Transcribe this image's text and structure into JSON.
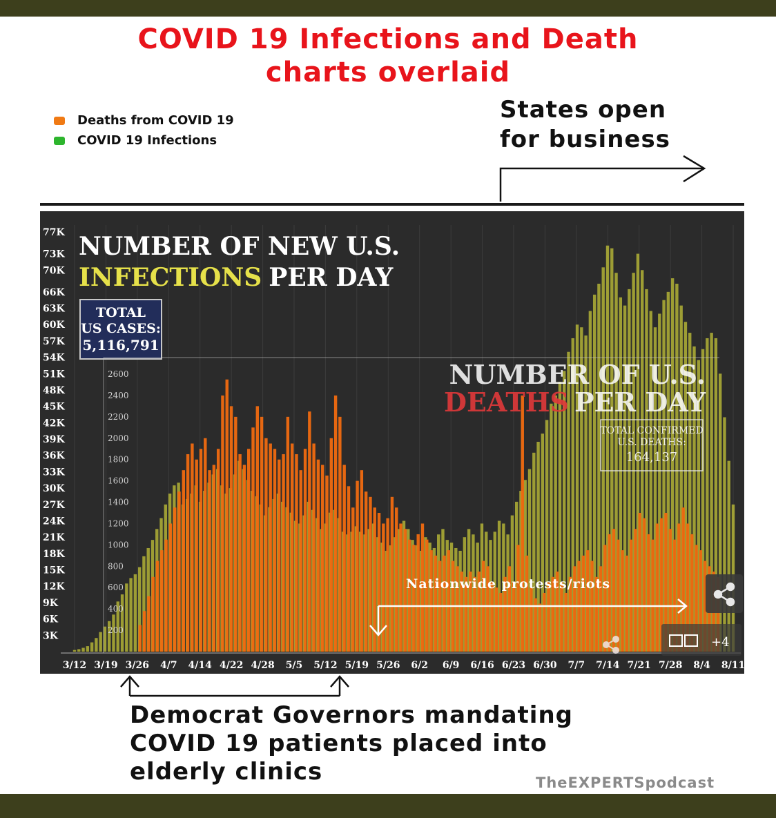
{
  "header": {
    "title_line1": "COVID 19 Infections and Death",
    "title_line2": "charts overlaid"
  },
  "legend": {
    "deaths_label": "Deaths from COVID 19",
    "infections_label": "COVID 19 Infections",
    "deaths_color": "#f07a14",
    "infections_color": "#2db52d"
  },
  "annotations": {
    "states_open_line1": "States open",
    "states_open_line2": "for business",
    "protests": "Nationwide protests/riots",
    "governors_line1": "Democrat Governors mandating",
    "governors_line2": "COVID 19 patients placed into",
    "governors_line3": "elderly clinics",
    "watermark": "TheEXPERTSpodcast"
  },
  "overlay": {
    "infections_title_line1": "NUMBER OF NEW U.S.",
    "infections_title_line2a": "INFECTIONS",
    "infections_title_line2b": "PER DAY",
    "total_cases_label1": "TOTAL",
    "total_cases_label2": "US CASES:",
    "total_cases_value": "5,116,791",
    "deaths_title_line1": "NUMBER OF U.S.",
    "deaths_title_line2a": "DEATHS",
    "deaths_title_line2b": "PER DAY",
    "total_deaths_label1": "TOTAL CONFIRMED",
    "total_deaths_label2": "U.S. DEATHS:",
    "total_deaths_value": "164,137",
    "photo_count": "+4",
    "colors": {
      "background": "#2b2b2b",
      "infection_bar": "#e4e43a",
      "death_bar": "#f06a10",
      "infections_title_accent": "#e6e14a",
      "deaths_title_accent": "#e0383a"
    }
  },
  "chart_data": {
    "type": "bar",
    "x_tick_labels": [
      "3/12",
      "3/19",
      "3/26",
      "4/7",
      "4/14",
      "4/22",
      "4/28",
      "5/5",
      "5/12",
      "5/19",
      "5/26",
      "6/2",
      "6/9",
      "6/16",
      "6/23",
      "6/30",
      "7/7",
      "7/14",
      "7/21",
      "7/28",
      "8/4",
      "8/11"
    ],
    "infections_axis_ticks": [
      "3K",
      "6K",
      "9K",
      "12K",
      "15K",
      "18K",
      "21K",
      "24K",
      "27K",
      "30K",
      "33K",
      "36K",
      "39K",
      "42K",
      "45K",
      "48K",
      "51K",
      "54K",
      "57K",
      "60K",
      "63K",
      "66K",
      "70K",
      "73K",
      "77K"
    ],
    "deaths_axis_ticks": [
      "200",
      "400",
      "600",
      "800",
      "1000",
      "1200",
      "1400",
      "1600",
      "1800",
      "2000",
      "2200",
      "2400",
      "2600"
    ],
    "infections_ylim": [
      0,
      77000
    ],
    "deaths_ylim": [
      0,
      2800
    ],
    "series": [
      {
        "name": "Deaths from COVID 19",
        "start_date": "3/26",
        "values": [
          250,
          380,
          520,
          700,
          850,
          950,
          1050,
          1200,
          1350,
          1500,
          1700,
          1850,
          1950,
          1800,
          1900,
          2000,
          1700,
          1750,
          1900,
          2400,
          2550,
          2300,
          2200,
          1850,
          1750,
          1900,
          2100,
          2300,
          2200,
          2000,
          1950,
          1900,
          1800,
          1850,
          2200,
          1950,
          1850,
          1700,
          1900,
          2250,
          1950,
          1800,
          1750,
          1650,
          2000,
          2400,
          2200,
          1750,
          1550,
          1350,
          1600,
          1700,
          1500,
          1450,
          1350,
          1300,
          1200,
          1250,
          1450,
          1350,
          1200,
          1150,
          1050,
          1000,
          1100,
          1200,
          1050,
          950,
          900,
          850,
          900,
          950,
          850,
          800,
          750,
          700,
          750,
          700,
          750,
          850,
          800,
          650,
          600,
          550,
          700,
          800,
          650,
          1000,
          2400,
          900,
          600,
          500,
          450,
          550,
          650,
          700,
          750,
          650,
          550,
          700,
          800,
          850,
          900,
          950,
          850,
          700,
          800,
          1000,
          1100,
          1150,
          1050,
          950,
          900,
          1050,
          1150,
          1300,
          1250,
          1100,
          1050,
          1200,
          1250,
          1300,
          1150,
          1050,
          1200,
          1350,
          1200,
          1100,
          1000,
          950,
          850,
          800,
          750,
          700
        ]
      },
      {
        "name": "COVID 19 Infections",
        "start_date": "3/12",
        "values": [
          300,
          450,
          700,
          1000,
          1700,
          2500,
          3600,
          4600,
          5600,
          6800,
          9200,
          10500,
          12500,
          13500,
          14200,
          15500,
          17500,
          19000,
          20500,
          22500,
          24500,
          27000,
          29000,
          30500,
          31000,
          27000,
          28000,
          29000,
          30500,
          27500,
          29500,
          31000,
          32500,
          33500,
          30500,
          29000,
          30000,
          32500,
          35000,
          33500,
          31500,
          29500,
          28500,
          27000,
          25000,
          26500,
          28000,
          29000,
          27500,
          26500,
          25500,
          24000,
          23500,
          25000,
          27500,
          26000,
          24500,
          22500,
          23500,
          25500,
          26000,
          24500,
          22000,
          21500,
          22000,
          23000,
          22000,
          21500,
          22500,
          23500,
          21000,
          20000,
          18500,
          19500,
          21000,
          22500,
          24000,
          22500,
          20500,
          19500,
          18500,
          21000,
          20000,
          19000,
          21500,
          22500,
          20500,
          20000,
          19000,
          18500,
          21000,
          22500,
          21500,
          20000,
          23500,
          22000,
          20500,
          22000,
          24000,
          23500,
          21500,
          25000,
          27500,
          29500,
          31500,
          33500,
          36500,
          38500,
          40000,
          42500,
          45500,
          47000,
          49500,
          51500,
          55000,
          57500,
          60000,
          59500,
          58000,
          62500,
          65500,
          67500,
          70500,
          74500,
          74000,
          69500,
          65000,
          63500,
          66500,
          69500,
          73000,
          70000,
          66500,
          62500,
          59500,
          62000,
          64500,
          66000,
          68500,
          67500,
          63500,
          60500,
          58500,
          56000,
          53500,
          55500,
          57500,
          58500,
          57500,
          51000,
          43000,
          35000,
          27000
        ]
      }
    ]
  }
}
